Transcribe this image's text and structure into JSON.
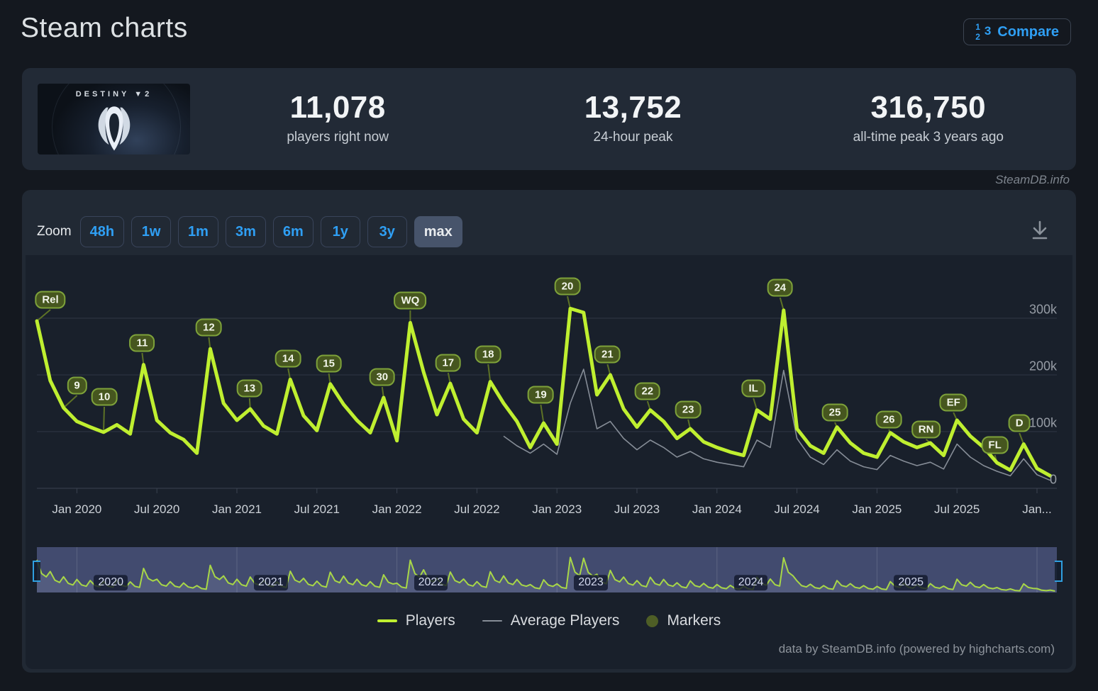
{
  "page": {
    "title": "Steam charts",
    "watermark": "SteamDB.info",
    "credit": "data by SteamDB.info (powered by highcharts.com)"
  },
  "compare": {
    "label": "Compare"
  },
  "game": {
    "brand": "DESTINY",
    "brand_number": "2"
  },
  "stats": [
    {
      "value": "11,078",
      "label": "players right now"
    },
    {
      "value": "13,752",
      "label": "24-hour peak"
    },
    {
      "value": "316,750",
      "label": "all-time peak 3 years ago"
    }
  ],
  "toolbar": {
    "zoom_label": "Zoom",
    "ranges": [
      "48h",
      "1w",
      "1m",
      "3m",
      "6m",
      "1y",
      "3y",
      "max"
    ],
    "active": "max"
  },
  "legend": [
    {
      "label": "Players",
      "swatch": "line",
      "color": "#bfef30"
    },
    {
      "label": "Average Players",
      "swatch": "line-thin",
      "color": "#868d97"
    },
    {
      "label": "Markers",
      "swatch": "circle",
      "color": "#4e5e26"
    }
  ],
  "chart_data": {
    "type": "line",
    "title": "Destiny 2 concurrent players on Steam",
    "start_month": "2019-10",
    "unit": "players (thousands)",
    "ylim": [
      0,
      380
    ],
    "grid": true,
    "legend_position": "bottom",
    "yticks": [
      {
        "label": "0",
        "value": 0
      },
      {
        "label": "100k",
        "value": 100
      },
      {
        "label": "200k",
        "value": 200
      },
      {
        "label": "300k",
        "value": 300
      }
    ],
    "xticks": [
      {
        "label": "Jan 2020",
        "m": 3
      },
      {
        "label": "Jul 2020",
        "m": 9
      },
      {
        "label": "Jan 2021",
        "m": 15
      },
      {
        "label": "Jul 2021",
        "m": 21
      },
      {
        "label": "Jan 2022",
        "m": 27
      },
      {
        "label": "Jul 2022",
        "m": 33
      },
      {
        "label": "Jan 2023",
        "m": 39
      },
      {
        "label": "Jul 2023",
        "m": 45
      },
      {
        "label": "Jan 2024",
        "m": 51
      },
      {
        "label": "Jul 2024",
        "m": 57
      },
      {
        "label": "Jan 2025",
        "m": 63
      },
      {
        "label": "Jul 2025",
        "m": 69
      },
      {
        "label": "Jan...",
        "m": 75
      }
    ],
    "series": [
      {
        "name": "Players",
        "color": "#bfef30",
        "start_m": 0,
        "values_k": [
          295,
          190,
          142,
          118,
          108,
          99,
          112,
          96,
          218,
          120,
          98,
          86,
          62,
          246,
          150,
          120,
          140,
          110,
          96,
          192,
          128,
          102,
          184,
          148,
          120,
          98,
          160,
          84,
          292,
          205,
          130,
          185,
          122,
          98,
          188,
          150,
          118,
          72,
          115,
          78,
          317,
          310,
          165,
          200,
          140,
          108,
          138,
          118,
          88,
          105,
          82,
          72,
          64,
          58,
          138,
          122,
          314,
          105,
          75,
          62,
          108,
          80,
          62,
          55,
          98,
          82,
          72,
          80,
          58,
          120,
          92,
          72,
          45,
          32,
          78,
          35,
          22
        ]
      },
      {
        "name": "Average Players",
        "color": "#868d97",
        "start_m": 35,
        "values_k": [
          92,
          75,
          62,
          78,
          60,
          150,
          210,
          105,
          118,
          88,
          68,
          85,
          72,
          55,
          65,
          52,
          46,
          42,
          38,
          85,
          72,
          208,
          88,
          55,
          42,
          68,
          48,
          38,
          33,
          58,
          48,
          40,
          46,
          34,
          78,
          55,
          40,
          30,
          22,
          52,
          24,
          14
        ]
      }
    ],
    "markers": [
      {
        "label": "Rel",
        "m": 0,
        "ly": 155,
        "dx": 19
      },
      {
        "label": "9",
        "m": 2,
        "ly": 276,
        "dx": 19
      },
      {
        "label": "10",
        "m": 5,
        "ly": 292,
        "dx": 1
      },
      {
        "label": "11",
        "m": 8,
        "ly": 216,
        "dx": -2
      },
      {
        "label": "12",
        "m": 13,
        "ly": 194,
        "dx": -2
      },
      {
        "label": "13",
        "m": 16,
        "ly": 280,
        "dx": -1
      },
      {
        "label": "14",
        "m": 19,
        "ly": 238,
        "dx": -3
      },
      {
        "label": "15",
        "m": 22,
        "ly": 245,
        "dx": -2
      },
      {
        "label": "30",
        "m": 26,
        "ly": 264,
        "dx": -2
      },
      {
        "label": "WQ",
        "m": 28,
        "ly": 156,
        "dx": 0
      },
      {
        "label": "17",
        "m": 31,
        "ly": 244,
        "dx": -3
      },
      {
        "label": "18",
        "m": 34,
        "ly": 232,
        "dx": -3
      },
      {
        "label": "19",
        "m": 38,
        "ly": 289,
        "dx": -4
      },
      {
        "label": "20",
        "m": 40,
        "ly": 136,
        "dx": -4
      },
      {
        "label": "21",
        "m": 43,
        "ly": 232,
        "dx": -4
      },
      {
        "label": "22",
        "m": 46,
        "ly": 284,
        "dx": -4
      },
      {
        "label": "23",
        "m": 49,
        "ly": 310,
        "dx": -3
      },
      {
        "label": "IL",
        "m": 54,
        "ly": 280,
        "dx": -5
      },
      {
        "label": "24",
        "m": 56,
        "ly": 138,
        "dx": -5
      },
      {
        "label": "25",
        "m": 60,
        "ly": 314,
        "dx": -3
      },
      {
        "label": "26",
        "m": 64,
        "ly": 324,
        "dx": -2
      },
      {
        "label": "RN",
        "m": 67,
        "ly": 338,
        "dx": -6
      },
      {
        "label": "EF",
        "m": 69,
        "ly": 300,
        "dx": -5
      },
      {
        "label": "FL",
        "m": 72,
        "ly": 360,
        "dx": -3
      },
      {
        "label": "D",
        "m": 74,
        "ly": 329,
        "dx": -6
      }
    ],
    "navigator": {
      "years": [
        {
          "label": "2020",
          "m": 3
        },
        {
          "label": "2021",
          "m": 15
        },
        {
          "label": "2022",
          "m": 27
        },
        {
          "label": "2023",
          "m": 39
        },
        {
          "label": "2024",
          "m": 51
        },
        {
          "label": "2025",
          "m": 63
        }
      ],
      "year_gridlines_m": [
        3,
        15,
        27,
        39,
        51,
        63,
        75
      ]
    }
  }
}
